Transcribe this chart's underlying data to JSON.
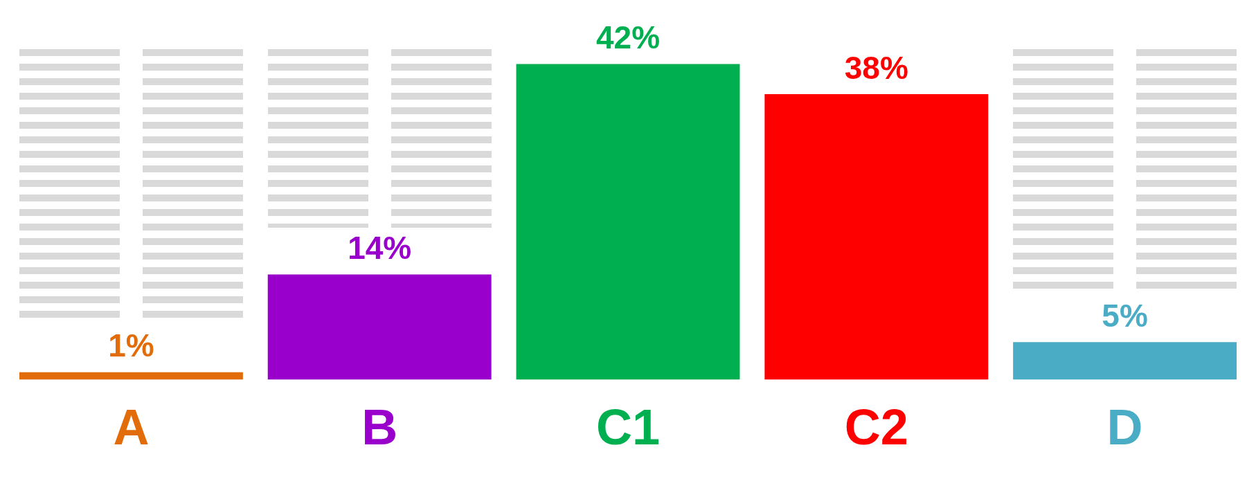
{
  "chart_data": {
    "type": "bar",
    "categories": [
      "A",
      "B",
      "C1",
      "C2",
      "D"
    ],
    "values": [
      1,
      14,
      42,
      38,
      5
    ],
    "colors": [
      "#e36c0a",
      "#9900cc",
      "#00b050",
      "#ff0000",
      "#4bacc6"
    ],
    "value_labels": [
      "1%",
      "14%",
      "42%",
      "38%",
      "5%"
    ],
    "tick_labels": "x",
    "legend": false,
    "grid": false
  }
}
